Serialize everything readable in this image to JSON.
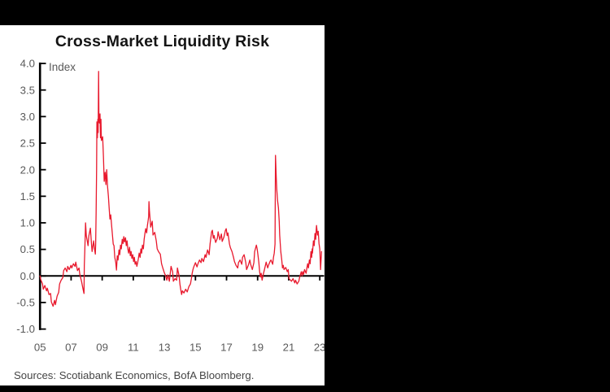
{
  "window": {
    "background": "#000000",
    "panel_background": "#ffffff"
  },
  "chart": {
    "title": "Cross-Market Liquidity Risk",
    "unit_label": "Index",
    "source_note": "Sources: Scotiabank Economics, BofA Bloomberg."
  },
  "chart_data": {
    "type": "line",
    "title": "Cross-Market Liquidity Risk",
    "ylabel": "Index",
    "xlabel": "",
    "ylim": [
      -1.0,
      4.0
    ],
    "xlim": [
      2005.0,
      2023.35
    ],
    "grid": false,
    "legend": "none",
    "line_color": "#e8192d",
    "axis_color": "#000000",
    "tick_label_color": "#595959",
    "y_ticks": [
      {
        "label": "4.0",
        "value": 4.0
      },
      {
        "label": "3.5",
        "value": 3.5
      },
      {
        "label": "3.0",
        "value": 3.0
      },
      {
        "label": "2.5",
        "value": 2.5
      },
      {
        "label": "2.0",
        "value": 2.0
      },
      {
        "label": "1.5",
        "value": 1.5
      },
      {
        "label": "1.0",
        "value": 1.0
      },
      {
        "label": "0.5",
        "value": 0.5
      },
      {
        "label": "0.0",
        "value": 0.0
      },
      {
        "label": "-0.5",
        "value": -0.5
      },
      {
        "label": "-1.0",
        "value": -1.0
      }
    ],
    "x_ticks": [
      {
        "label": "05",
        "year": 2005,
        "mark": false
      },
      {
        "label": "07",
        "year": 2007,
        "mark": true
      },
      {
        "label": "09",
        "year": 2009,
        "mark": true
      },
      {
        "label": "11",
        "year": 2011,
        "mark": true
      },
      {
        "label": "13",
        "year": 2013,
        "mark": true
      },
      {
        "label": "15",
        "year": 2015,
        "mark": true
      },
      {
        "label": "17",
        "year": 2017,
        "mark": true
      },
      {
        "label": "19",
        "year": 2019,
        "mark": true
      },
      {
        "label": "21",
        "year": 2021,
        "mark": true
      },
      {
        "label": "23",
        "year": 2023,
        "mark": true
      }
    ],
    "series": [
      {
        "name": "Cross-Market Liquidity Risk Index",
        "points": [
          [
            2005.0,
            0.0
          ],
          [
            2005.05,
            -0.07
          ],
          [
            2005.16,
            -0.15
          ],
          [
            2005.21,
            -0.25
          ],
          [
            2005.31,
            -0.18
          ],
          [
            2005.42,
            -0.28
          ],
          [
            2005.47,
            -0.23
          ],
          [
            2005.58,
            -0.35
          ],
          [
            2005.68,
            -0.33
          ],
          [
            2005.73,
            -0.49
          ],
          [
            2005.84,
            -0.57
          ],
          [
            2005.94,
            -0.46
          ],
          [
            2005.99,
            -0.54
          ],
          [
            2006.1,
            -0.38
          ],
          [
            2006.2,
            -0.31
          ],
          [
            2006.26,
            -0.15
          ],
          [
            2006.36,
            -0.08
          ],
          [
            2006.47,
            -0.03
          ],
          [
            2006.52,
            0.1
          ],
          [
            2006.62,
            0.15
          ],
          [
            2006.73,
            0.08
          ],
          [
            2006.78,
            0.18
          ],
          [
            2006.88,
            0.12
          ],
          [
            2006.99,
            0.2
          ],
          [
            2007.04,
            0.15
          ],
          [
            2007.15,
            0.23
          ],
          [
            2007.25,
            0.18
          ],
          [
            2007.3,
            0.26
          ],
          [
            2007.41,
            0.1
          ],
          [
            2007.51,
            0.15
          ],
          [
            2007.56,
            0.03
          ],
          [
            2007.67,
            -0.1
          ],
          [
            2007.77,
            -0.25
          ],
          [
            2007.83,
            -0.33
          ],
          [
            2007.85,
            0.2
          ],
          [
            2007.88,
            0.46
          ],
          [
            2007.93,
            1.0
          ],
          [
            2007.98,
            0.75
          ],
          [
            2008.04,
            0.66
          ],
          [
            2008.09,
            0.57
          ],
          [
            2008.14,
            0.75
          ],
          [
            2008.24,
            0.9
          ],
          [
            2008.3,
            0.65
          ],
          [
            2008.35,
            0.46
          ],
          [
            2008.45,
            0.66
          ],
          [
            2008.51,
            0.5
          ],
          [
            2008.56,
            0.41
          ],
          [
            2008.58,
            0.6
          ],
          [
            2008.61,
            1.2
          ],
          [
            2008.64,
            2.0
          ],
          [
            2008.66,
            2.9
          ],
          [
            2008.69,
            2.6
          ],
          [
            2008.72,
            2.95
          ],
          [
            2008.74,
            2.7
          ],
          [
            2008.77,
            3.85
          ],
          [
            2008.79,
            2.95
          ],
          [
            2008.82,
            2.88
          ],
          [
            2008.86,
            3.05
          ],
          [
            2008.89,
            2.6
          ],
          [
            2008.92,
            2.95
          ],
          [
            2008.95,
            2.55
          ],
          [
            2008.98,
            2.58
          ],
          [
            2009.03,
            2.62
          ],
          [
            2009.08,
            2.25
          ],
          [
            2009.13,
            1.78
          ],
          [
            2009.19,
            1.95
          ],
          [
            2009.24,
            1.72
          ],
          [
            2009.29,
            2.0
          ],
          [
            2009.34,
            1.7
          ],
          [
            2009.4,
            1.5
          ],
          [
            2009.45,
            1.27
          ],
          [
            2009.5,
            1.07
          ],
          [
            2009.55,
            1.15
          ],
          [
            2009.6,
            0.97
          ],
          [
            2009.66,
            0.77
          ],
          [
            2009.71,
            0.6
          ],
          [
            2009.76,
            0.57
          ],
          [
            2009.81,
            0.35
          ],
          [
            2009.87,
            0.26
          ],
          [
            2009.92,
            0.11
          ],
          [
            2009.97,
            0.38
          ],
          [
            2010.02,
            0.3
          ],
          [
            2010.08,
            0.49
          ],
          [
            2010.13,
            0.4
          ],
          [
            2010.18,
            0.58
          ],
          [
            2010.23,
            0.51
          ],
          [
            2010.29,
            0.69
          ],
          [
            2010.34,
            0.61
          ],
          [
            2010.39,
            0.74
          ],
          [
            2010.44,
            0.64
          ],
          [
            2010.5,
            0.72
          ],
          [
            2010.55,
            0.57
          ],
          [
            2010.6,
            0.66
          ],
          [
            2010.65,
            0.51
          ],
          [
            2010.7,
            0.43
          ],
          [
            2010.76,
            0.54
          ],
          [
            2010.81,
            0.38
          ],
          [
            2010.86,
            0.46
          ],
          [
            2010.91,
            0.33
          ],
          [
            2010.97,
            0.4
          ],
          [
            2011.02,
            0.27
          ],
          [
            2011.07,
            0.35
          ],
          [
            2011.12,
            0.22
          ],
          [
            2011.18,
            0.27
          ],
          [
            2011.23,
            0.18
          ],
          [
            2011.28,
            0.25
          ],
          [
            2011.33,
            0.33
          ],
          [
            2011.38,
            0.43
          ],
          [
            2011.44,
            0.35
          ],
          [
            2011.49,
            0.51
          ],
          [
            2011.54,
            0.43
          ],
          [
            2011.59,
            0.58
          ],
          [
            2011.65,
            0.51
          ],
          [
            2011.7,
            0.69
          ],
          [
            2011.75,
            0.8
          ],
          [
            2011.8,
            0.89
          ],
          [
            2011.86,
            0.81
          ],
          [
            2011.91,
            0.95
          ],
          [
            2011.96,
            1.05
          ],
          [
            2011.99,
            1.12
          ],
          [
            2012.01,
            1.4
          ],
          [
            2012.04,
            1.23
          ],
          [
            2012.12,
            0.92
          ],
          [
            2012.22,
            1.03
          ],
          [
            2012.27,
            0.77
          ],
          [
            2012.38,
            0.82
          ],
          [
            2012.48,
            0.66
          ],
          [
            2012.54,
            0.51
          ],
          [
            2012.64,
            0.45
          ],
          [
            2012.74,
            0.41
          ],
          [
            2012.82,
            0.23
          ],
          [
            2012.9,
            0.15
          ],
          [
            2013.01,
            0.05
          ],
          [
            2013.06,
            0.02
          ],
          [
            2013.16,
            -0.08
          ],
          [
            2013.22,
            0.02
          ],
          [
            2013.32,
            -0.1
          ],
          [
            2013.43,
            0.18
          ],
          [
            2013.53,
            0.08
          ],
          [
            2013.58,
            -0.1
          ],
          [
            2013.69,
            -0.05
          ],
          [
            2013.79,
            -0.08
          ],
          [
            2013.84,
            0.15
          ],
          [
            2013.95,
            0.0
          ],
          [
            2014.0,
            -0.15
          ],
          [
            2014.05,
            -0.25
          ],
          [
            2014.11,
            -0.35
          ],
          [
            2014.16,
            -0.28
          ],
          [
            2014.26,
            -0.32
          ],
          [
            2014.37,
            -0.25
          ],
          [
            2014.47,
            -0.3
          ],
          [
            2014.58,
            -0.2
          ],
          [
            2014.68,
            -0.15
          ],
          [
            2014.74,
            -0.05
          ],
          [
            2014.79,
            0.05
          ],
          [
            2014.84,
            0.12
          ],
          [
            2014.89,
            0.17
          ],
          [
            2015.0,
            0.25
          ],
          [
            2015.1,
            0.17
          ],
          [
            2015.15,
            0.22
          ],
          [
            2015.26,
            0.3
          ],
          [
            2015.36,
            0.25
          ],
          [
            2015.41,
            0.33
          ],
          [
            2015.52,
            0.27
          ],
          [
            2015.62,
            0.4
          ],
          [
            2015.68,
            0.35
          ],
          [
            2015.78,
            0.49
          ],
          [
            2015.88,
            0.4
          ],
          [
            2015.94,
            0.6
          ],
          [
            2016.04,
            0.83
          ],
          [
            2016.09,
            0.86
          ],
          [
            2016.15,
            0.71
          ],
          [
            2016.2,
            0.76
          ],
          [
            2016.3,
            0.63
          ],
          [
            2016.41,
            0.71
          ],
          [
            2016.46,
            0.83
          ],
          [
            2016.57,
            0.68
          ],
          [
            2016.67,
            0.79
          ],
          [
            2016.72,
            0.65
          ],
          [
            2016.83,
            0.73
          ],
          [
            2016.93,
            0.86
          ],
          [
            2016.98,
            0.89
          ],
          [
            2017.04,
            0.76
          ],
          [
            2017.09,
            0.81
          ],
          [
            2017.19,
            0.6
          ],
          [
            2017.25,
            0.53
          ],
          [
            2017.35,
            0.46
          ],
          [
            2017.45,
            0.35
          ],
          [
            2017.51,
            0.27
          ],
          [
            2017.61,
            0.2
          ],
          [
            2017.72,
            0.15
          ],
          [
            2017.77,
            0.25
          ],
          [
            2017.87,
            0.3
          ],
          [
            2017.98,
            0.22
          ],
          [
            2018.03,
            0.35
          ],
          [
            2018.13,
            0.4
          ],
          [
            2018.24,
            0.25
          ],
          [
            2018.29,
            0.12
          ],
          [
            2018.4,
            0.2
          ],
          [
            2018.5,
            0.3
          ],
          [
            2018.55,
            0.22
          ],
          [
            2018.66,
            0.12
          ],
          [
            2018.76,
            0.25
          ],
          [
            2018.81,
            0.46
          ],
          [
            2018.92,
            0.58
          ],
          [
            2018.97,
            0.51
          ],
          [
            2019.02,
            0.4
          ],
          [
            2019.08,
            0.25
          ],
          [
            2019.13,
            0.08
          ],
          [
            2019.18,
            -0.02
          ],
          [
            2019.23,
            0.05
          ],
          [
            2019.29,
            -0.08
          ],
          [
            2019.34,
            0.0
          ],
          [
            2019.44,
            0.12
          ],
          [
            2019.55,
            0.26
          ],
          [
            2019.65,
            0.15
          ],
          [
            2019.7,
            0.2
          ],
          [
            2019.81,
            0.28
          ],
          [
            2019.86,
            0.3
          ],
          [
            2019.97,
            0.22
          ],
          [
            2020.02,
            0.35
          ],
          [
            2020.07,
            0.43
          ],
          [
            2020.12,
            0.6
          ],
          [
            2020.15,
            2.27
          ],
          [
            2020.2,
            1.85
          ],
          [
            2020.23,
            1.64
          ],
          [
            2020.28,
            1.43
          ],
          [
            2020.34,
            1.28
          ],
          [
            2020.39,
            1.03
          ],
          [
            2020.42,
            0.77
          ],
          [
            2020.49,
            0.46
          ],
          [
            2020.55,
            0.31
          ],
          [
            2020.6,
            0.15
          ],
          [
            2020.65,
            0.2
          ],
          [
            2020.7,
            0.12
          ],
          [
            2020.81,
            0.16
          ],
          [
            2020.91,
            0.08
          ],
          [
            2020.97,
            0.12
          ],
          [
            2021.02,
            -0.05
          ],
          [
            2021.12,
            -0.08
          ],
          [
            2021.18,
            -0.1
          ],
          [
            2021.28,
            -0.05
          ],
          [
            2021.39,
            -0.13
          ],
          [
            2021.44,
            -0.08
          ],
          [
            2021.54,
            -0.15
          ],
          [
            2021.65,
            -0.1
          ],
          [
            2021.7,
            -0.03
          ],
          [
            2021.81,
            0.08
          ],
          [
            2021.86,
            0.0
          ],
          [
            2021.91,
            0.08
          ],
          [
            2021.96,
            0.03
          ],
          [
            2022.02,
            0.12
          ],
          [
            2022.12,
            0.05
          ],
          [
            2022.17,
            0.15
          ],
          [
            2022.22,
            0.23
          ],
          [
            2022.27,
            0.15
          ],
          [
            2022.33,
            0.3
          ],
          [
            2022.38,
            0.23
          ],
          [
            2022.43,
            0.46
          ],
          [
            2022.48,
            0.35
          ],
          [
            2022.51,
            0.51
          ],
          [
            2022.53,
            0.43
          ],
          [
            2022.59,
            0.66
          ],
          [
            2022.64,
            0.57
          ],
          [
            2022.69,
            0.8
          ],
          [
            2022.74,
            0.69
          ],
          [
            2022.77,
            0.87
          ],
          [
            2022.79,
            0.95
          ],
          [
            2022.85,
            0.77
          ],
          [
            2022.9,
            0.84
          ],
          [
            2022.95,
            0.61
          ],
          [
            2023.0,
            0.51
          ],
          [
            2023.03,
            0.28
          ],
          [
            2023.05,
            0.12
          ],
          [
            2023.11,
            0.46
          ]
        ]
      }
    ]
  }
}
